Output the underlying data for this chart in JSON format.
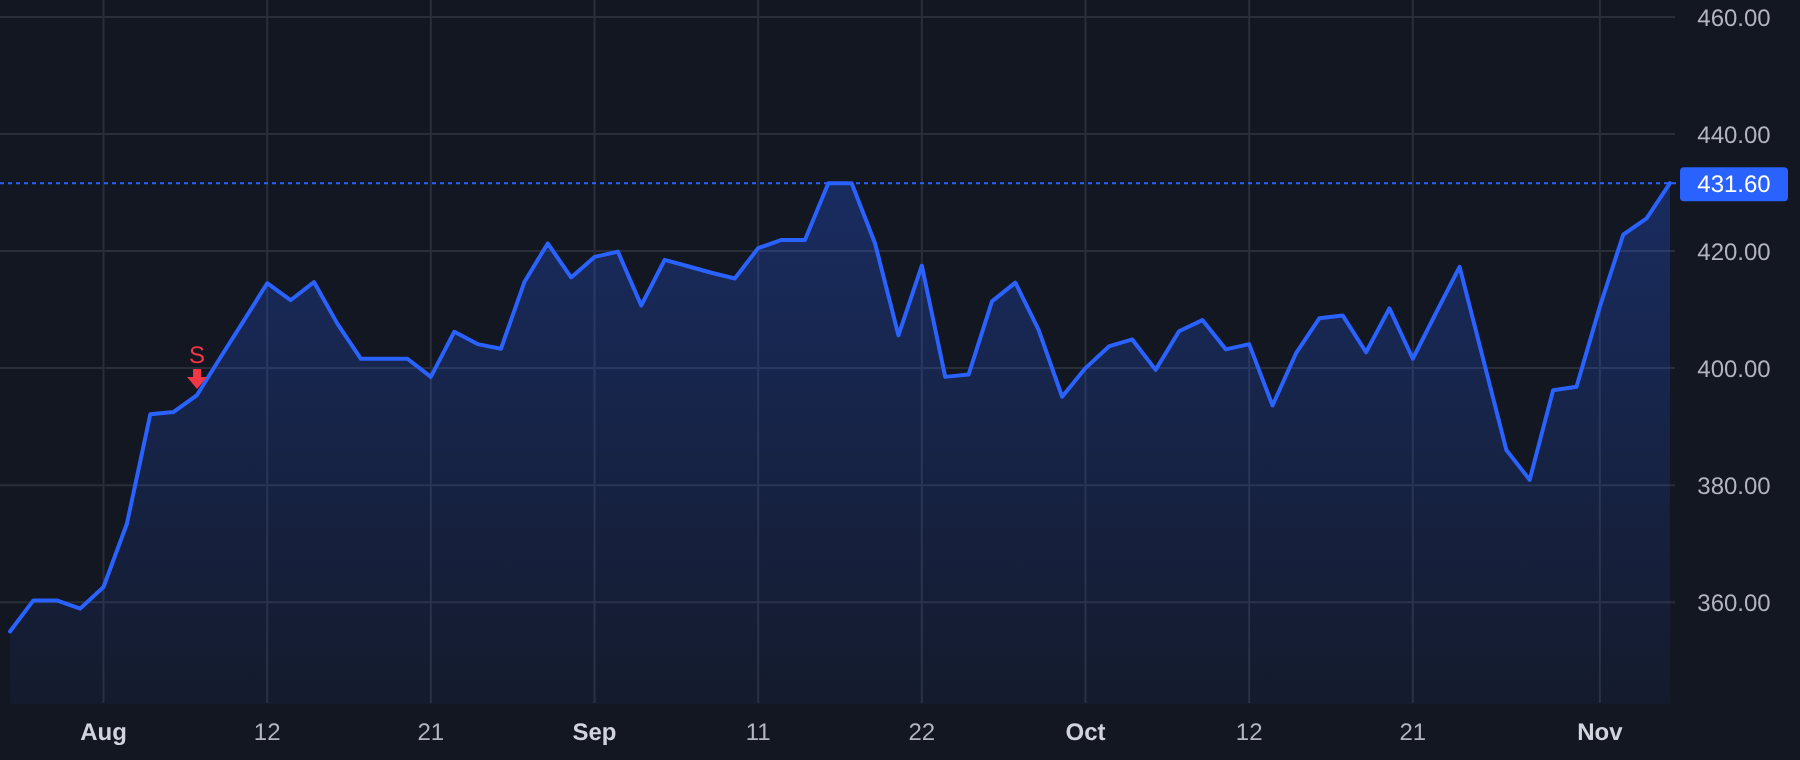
{
  "chart_data": {
    "type": "area",
    "categories": [
      null,
      null,
      null,
      null,
      "Aug",
      null,
      null,
      null,
      null,
      null,
      null,
      "12",
      null,
      null,
      null,
      null,
      null,
      null,
      "21",
      null,
      null,
      null,
      null,
      null,
      null,
      "Sep",
      null,
      null,
      null,
      null,
      null,
      null,
      "11",
      null,
      null,
      null,
      null,
      null,
      null,
      "22",
      null,
      null,
      null,
      null,
      null,
      null,
      "Oct",
      null,
      null,
      null,
      null,
      null,
      null,
      "12",
      null,
      null,
      null,
      null,
      null,
      null,
      "21",
      null,
      null,
      null,
      null,
      null,
      null,
      null,
      "Nov",
      null,
      null,
      null
    ],
    "series": [
      {
        "color": "#2962ff",
        "values": [
          355.0,
          360.3,
          360.3,
          358.9,
          362.6,
          373.4,
          392.1,
          392.5,
          395.4,
          401.8,
          408.1,
          414.5,
          411.6,
          414.7,
          407.6,
          401.6,
          401.6,
          401.6,
          398.5,
          406.2,
          404.1,
          403.3,
          414.7,
          421.3,
          415.5,
          419.0,
          419.9,
          410.7,
          418.5,
          417.4,
          416.3,
          415.3,
          420.5,
          421.9,
          421.9,
          431.6,
          431.6,
          421.3,
          405.6,
          417.5,
          398.5,
          398.9,
          411.4,
          414.6,
          406.5,
          395.1,
          400.0,
          403.7,
          404.9,
          399.7,
          406.3,
          408.2,
          403.2,
          404.1,
          393.6,
          402.5,
          408.5,
          409.0,
          402.7,
          410.2,
          401.6,
          409.5,
          417.3,
          401.7,
          386.0,
          380.9,
          396.2,
          396.8,
          410.5,
          422.8,
          425.6,
          431.6
        ]
      }
    ],
    "ylim": [
      342.6,
      462.9
    ],
    "yticks": [
      {
        "value": 360,
        "label": "360.00"
      },
      {
        "value": 380,
        "label": "380.00"
      },
      {
        "value": 400,
        "label": "400.00"
      },
      {
        "value": 420,
        "label": "420.00"
      },
      {
        "value": 440,
        "label": "440.00"
      },
      {
        "value": 460,
        "label": "460.00"
      }
    ],
    "grid": true,
    "ref_lines": [
      {
        "axis": "y",
        "value": 431.6,
        "label": "431.60",
        "color": "#2962ff",
        "line_style": "dotted"
      }
    ],
    "annotations": [
      {
        "text": "S",
        "y": 395.4
      }
    ]
  }
}
